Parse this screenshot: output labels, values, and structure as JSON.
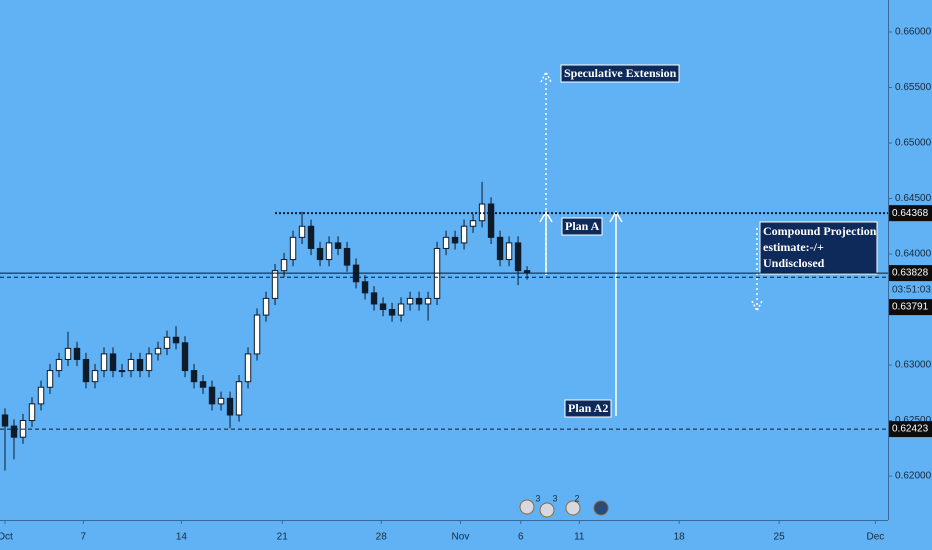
{
  "chart_data": {
    "type": "candlestick",
    "x": [
      0,
      1,
      2,
      3,
      4,
      5,
      6,
      7,
      8,
      9,
      10,
      11,
      12,
      13,
      14,
      15,
      16,
      17,
      18,
      19,
      20,
      21,
      22,
      23,
      24,
      25,
      26,
      27,
      28,
      29,
      30,
      31,
      32,
      33,
      34,
      35,
      36,
      37,
      38,
      39,
      40,
      41,
      42,
      43,
      44,
      45,
      46,
      47,
      48,
      49,
      50,
      51,
      52,
      53,
      54,
      55,
      56,
      57,
      58
    ],
    "open": [
      0.6255,
      0.6245,
      0.6235,
      0.625,
      0.6265,
      0.628,
      0.6295,
      0.6305,
      0.6315,
      0.6305,
      0.6285,
      0.6295,
      0.631,
      0.6295,
      0.6295,
      0.6305,
      0.6295,
      0.631,
      0.6315,
      0.6325,
      0.632,
      0.6295,
      0.6285,
      0.628,
      0.6265,
      0.627,
      0.6255,
      0.6285,
      0.631,
      0.6345,
      0.636,
      0.6385,
      0.6395,
      0.6415,
      0.6425,
      0.6405,
      0.6395,
      0.641,
      0.6405,
      0.639,
      0.6375,
      0.6365,
      0.6355,
      0.635,
      0.6345,
      0.6355,
      0.636,
      0.6355,
      0.636,
      0.6405,
      0.6415,
      0.641,
      0.6425,
      0.643,
      0.6445,
      0.6415,
      0.6395,
      0.641,
      0.6385
    ],
    "high": [
      0.6261,
      0.6251,
      0.6256,
      0.6271,
      0.6286,
      0.6301,
      0.6311,
      0.633,
      0.6321,
      0.6311,
      0.6301,
      0.6316,
      0.6316,
      0.6301,
      0.6311,
      0.6311,
      0.6316,
      0.6321,
      0.6331,
      0.6335,
      0.6326,
      0.6301,
      0.6291,
      0.6286,
      0.6276,
      0.6276,
      0.6291,
      0.6316,
      0.6351,
      0.6366,
      0.6391,
      0.6401,
      0.6421,
      0.6438,
      0.6431,
      0.6411,
      0.6416,
      0.6416,
      0.6411,
      0.6396,
      0.6381,
      0.6371,
      0.6361,
      0.6356,
      0.6361,
      0.6366,
      0.6366,
      0.6366,
      0.6411,
      0.6421,
      0.6421,
      0.6431,
      0.6436,
      0.6465,
      0.6451,
      0.6421,
      0.6416,
      0.6416,
      0.6389
    ],
    "low": [
      0.6205,
      0.6215,
      0.6229,
      0.6244,
      0.6259,
      0.6274,
      0.6289,
      0.6299,
      0.6299,
      0.6279,
      0.6279,
      0.6289,
      0.6289,
      0.6289,
      0.6289,
      0.6289,
      0.6289,
      0.6304,
      0.6309,
      0.6314,
      0.6289,
      0.6279,
      0.6274,
      0.6259,
      0.6259,
      0.6243,
      0.6249,
      0.6279,
      0.6304,
      0.6339,
      0.6354,
      0.6379,
      0.6389,
      0.6409,
      0.6399,
      0.6389,
      0.6389,
      0.6399,
      0.6384,
      0.6369,
      0.6359,
      0.6349,
      0.6344,
      0.6339,
      0.6339,
      0.6349,
      0.6349,
      0.634,
      0.6354,
      0.6399,
      0.6404,
      0.6404,
      0.6419,
      0.6424,
      0.6409,
      0.6389,
      0.6389,
      0.6372,
      0.6377
    ],
    "close": [
      0.6245,
      0.6235,
      0.625,
      0.6265,
      0.628,
      0.6295,
      0.6305,
      0.6315,
      0.6305,
      0.6285,
      0.6295,
      0.631,
      0.6295,
      0.6295,
      0.6305,
      0.6295,
      0.631,
      0.6315,
      0.6325,
      0.632,
      0.6295,
      0.6285,
      0.628,
      0.6265,
      0.627,
      0.6255,
      0.6285,
      0.631,
      0.6345,
      0.636,
      0.6385,
      0.6395,
      0.6415,
      0.6425,
      0.6405,
      0.6395,
      0.641,
      0.6405,
      0.639,
      0.6375,
      0.6365,
      0.6355,
      0.635,
      0.6345,
      0.6355,
      0.636,
      0.6355,
      0.636,
      0.6405,
      0.6415,
      0.641,
      0.6425,
      0.643,
      0.6445,
      0.6415,
      0.6395,
      0.641,
      0.6385,
      0.6383
    ],
    "color": "#0d1b2a",
    "xlim": [
      -0.556,
      98.1
    ],
    "xticks": [
      {
        "value": 0,
        "label": "Oct"
      },
      {
        "value": 8.7,
        "label": "7"
      },
      {
        "value": 19.6,
        "label": "14"
      },
      {
        "value": 30.8,
        "label": "21"
      },
      {
        "value": 41.8,
        "label": "28"
      },
      {
        "value": 50.6,
        "label": "Nov"
      },
      {
        "value": 57.3,
        "label": "6"
      },
      {
        "value": 63.8,
        "label": "11"
      },
      {
        "value": 74.9,
        "label": "18"
      },
      {
        "value": 86,
        "label": "25"
      },
      {
        "value": 96.7,
        "label": "Dec"
      }
    ],
    "ylim": [
      0.61604,
      0.66288
    ],
    "yticks": [
      {
        "value": 0.62,
        "label": "0.62000"
      },
      {
        "value": 0.625,
        "label": "0.62500"
      },
      {
        "value": 0.63,
        "label": "0.63000"
      },
      {
        "value": 0.635,
        "label": "0.63500"
      },
      {
        "value": 0.64,
        "label": "0.64000"
      },
      {
        "value": 0.645,
        "label": "0.64500"
      },
      {
        "value": 0.65,
        "label": "0.65000"
      },
      {
        "value": 0.655,
        "label": "0.65500"
      },
      {
        "value": 0.66,
        "label": "0.66000"
      }
    ],
    "levels": [
      {
        "value": 0.64368,
        "style": "dotted",
        "x_start": 30
      },
      {
        "value": 0.63828,
        "style": "solid",
        "countdown": "03:51:03"
      },
      {
        "value": 0.63791,
        "style": "dashed"
      },
      {
        "value": 0.62423,
        "style": "dashed"
      }
    ],
    "annotations": {
      "extension": "Speculative  Extension",
      "plan_a": "Plan A",
      "plan_a2": "Plan A2",
      "projection": [
        "Compound Projection",
        "estimate:-/+",
        "Undisclosed"
      ]
    },
    "events": [
      "3",
      "3",
      "2"
    ]
  }
}
